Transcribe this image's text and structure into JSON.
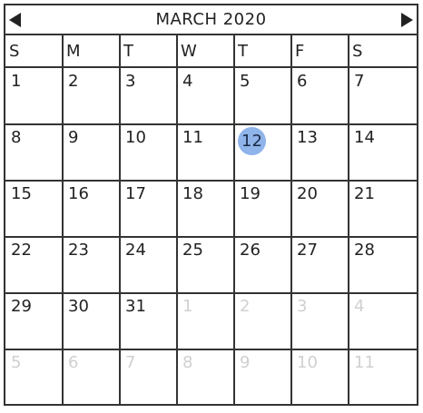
{
  "calendar": {
    "title": "MARCH 2020",
    "prev_icon": "triangle-left-icon",
    "next_icon": "triangle-right-icon",
    "accent_color": "#8fb4ea",
    "weekdays": [
      "S",
      "M",
      "T",
      "W",
      "T",
      "F",
      "S"
    ],
    "selected_day": "12",
    "weeks": [
      [
        {
          "d": "1",
          "cur": true
        },
        {
          "d": "2",
          "cur": true
        },
        {
          "d": "3",
          "cur": true
        },
        {
          "d": "4",
          "cur": true
        },
        {
          "d": "5",
          "cur": true
        },
        {
          "d": "6",
          "cur": true
        },
        {
          "d": "7",
          "cur": true
        }
      ],
      [
        {
          "d": "8",
          "cur": true
        },
        {
          "d": "9",
          "cur": true
        },
        {
          "d": "10",
          "cur": true
        },
        {
          "d": "11",
          "cur": true
        },
        {
          "d": "12",
          "cur": true
        },
        {
          "d": "13",
          "cur": true
        },
        {
          "d": "14",
          "cur": true
        }
      ],
      [
        {
          "d": "15",
          "cur": true
        },
        {
          "d": "16",
          "cur": true
        },
        {
          "d": "17",
          "cur": true
        },
        {
          "d": "18",
          "cur": true
        },
        {
          "d": "19",
          "cur": true
        },
        {
          "d": "20",
          "cur": true
        },
        {
          "d": "21",
          "cur": true
        }
      ],
      [
        {
          "d": "22",
          "cur": true
        },
        {
          "d": "23",
          "cur": true
        },
        {
          "d": "24",
          "cur": true
        },
        {
          "d": "25",
          "cur": true
        },
        {
          "d": "26",
          "cur": true
        },
        {
          "d": "27",
          "cur": true
        },
        {
          "d": "28",
          "cur": true
        }
      ],
      [
        {
          "d": "29",
          "cur": true
        },
        {
          "d": "30",
          "cur": true
        },
        {
          "d": "31",
          "cur": true
        },
        {
          "d": "1",
          "cur": false
        },
        {
          "d": "2",
          "cur": false
        },
        {
          "d": "3",
          "cur": false
        },
        {
          "d": "4",
          "cur": false
        }
      ],
      [
        {
          "d": "5",
          "cur": false
        },
        {
          "d": "6",
          "cur": false
        },
        {
          "d": "7",
          "cur": false
        },
        {
          "d": "8",
          "cur": false
        },
        {
          "d": "9",
          "cur": false
        },
        {
          "d": "10",
          "cur": false
        },
        {
          "d": "11",
          "cur": false
        }
      ]
    ]
  }
}
